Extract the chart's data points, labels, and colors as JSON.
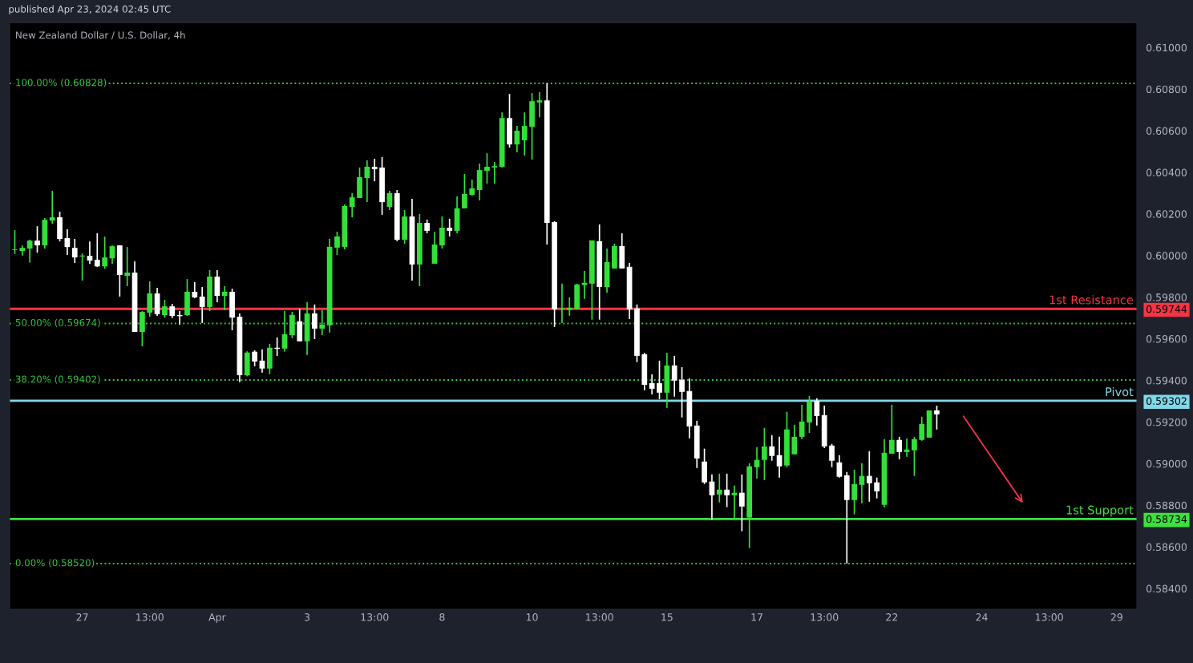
{
  "chart_data": {
    "type": "candlestick",
    "title": "New Zealand Dollar / U.S. Dollar, 4h",
    "annotations": [
      "published Apr 23, 2024 02:45 UTC"
    ],
    "categories": [
      null,
      null,
      null,
      null,
      null,
      null,
      null,
      null,
      null,
      "27",
      null,
      null,
      null,
      null,
      null,
      null,
      null,
      null,
      "13:00",
      null,
      null,
      null,
      null,
      null,
      null,
      null,
      null,
      "Apr",
      null,
      null,
      null,
      null,
      null,
      null,
      null,
      null,
      null,
      null,
      null,
      "3",
      null,
      null,
      null,
      null,
      null,
      null,
      null,
      null,
      "13:00",
      null,
      null,
      null,
      null,
      null,
      null,
      null,
      null,
      "8",
      null,
      null,
      null,
      null,
      null,
      null,
      null,
      null,
      null,
      null,
      null,
      "10",
      null,
      null,
      null,
      null,
      null,
      null,
      null,
      null,
      "13:00",
      null,
      null,
      null,
      null,
      null,
      null,
      null,
      null,
      "15",
      null,
      null,
      null,
      null,
      null,
      null,
      null,
      null,
      null,
      null,
      null,
      "17",
      null,
      null,
      null,
      null,
      null,
      null,
      null,
      null,
      "13:00",
      null,
      null,
      null,
      null,
      null,
      null,
      null,
      null,
      "22",
      null,
      null,
      null,
      null,
      null,
      null,
      null,
      null,
      null,
      null,
      null,
      "24",
      null,
      null,
      null,
      null,
      null,
      null,
      null,
      null,
      "13:00",
      null,
      null,
      null,
      null,
      null,
      null,
      null,
      null,
      "29",
      null,
      null
    ],
    "ohlc": [
      [
        0.60027,
        0.60122,
        0.60008,
        0.6003
      ],
      [
        0.60022,
        0.60049,
        0.6,
        0.60037
      ],
      [
        0.60034,
        0.60076,
        0.59966,
        0.60072
      ],
      [
        0.60072,
        0.60141,
        0.60014,
        0.60049
      ],
      [
        0.60049,
        0.6018,
        0.60034,
        0.60172
      ],
      [
        0.60168,
        0.60311,
        0.60153,
        0.60184
      ],
      [
        0.60184,
        0.60211,
        0.60068,
        0.6008
      ],
      [
        0.60084,
        0.60126,
        0.60003,
        0.60041
      ],
      [
        0.60037,
        0.6008,
        0.59964,
        0.59991
      ],
      [
        0.59996,
        0.6001,
        0.5988,
        0.6
      ],
      [
        0.59999,
        0.60068,
        0.5996,
        0.59976
      ],
      [
        0.5998,
        0.60107,
        0.59945,
        0.59948
      ],
      [
        0.59948,
        0.60091,
        0.59937,
        0.59991
      ],
      [
        0.59987,
        0.60049,
        0.5996,
        0.60045
      ],
      [
        0.60049,
        0.6005,
        0.59803,
        0.59907
      ],
      [
        0.59903,
        0.60041,
        0.59853,
        0.59918
      ],
      [
        0.59918,
        0.59972,
        0.59633,
        0.59633
      ],
      [
        0.59633,
        0.59733,
        0.59564,
        0.59729
      ],
      [
        0.59726,
        0.59876,
        0.59706,
        0.59818
      ],
      [
        0.59818,
        0.59845,
        0.5971,
        0.59718
      ],
      [
        0.59714,
        0.59787,
        0.59702,
        0.59756
      ],
      [
        0.59756,
        0.59768,
        0.59699,
        0.5971
      ],
      [
        0.59714,
        0.59733,
        0.59668,
        0.59709
      ],
      [
        0.59714,
        0.59887,
        0.5971,
        0.59826
      ],
      [
        0.59826,
        0.59872,
        0.59795,
        0.59799
      ],
      [
        0.59803,
        0.59849,
        0.59676,
        0.59753
      ],
      [
        0.59753,
        0.5993,
        0.59733,
        0.59899
      ],
      [
        0.59899,
        0.5993,
        0.59776,
        0.59806
      ],
      [
        0.59806,
        0.59853,
        0.59737,
        0.59826
      ],
      [
        0.59826,
        0.59841,
        0.59641,
        0.59702
      ],
      [
        0.59706,
        0.59722,
        0.59391,
        0.59425
      ],
      [
        0.59425,
        0.5954,
        0.5942,
        0.59534
      ],
      [
        0.59538,
        0.59545,
        0.59468,
        0.59491
      ],
      [
        0.59495,
        0.59549,
        0.59438,
        0.59457
      ],
      [
        0.59457,
        0.59576,
        0.5943,
        0.59557
      ],
      [
        0.59557,
        0.59607,
        0.59518,
        0.59552
      ],
      [
        0.59553,
        0.59734,
        0.59538,
        0.59622
      ],
      [
        0.59618,
        0.5973,
        0.59603,
        0.59715
      ],
      [
        0.59684,
        0.59745,
        0.59588,
        0.59588
      ],
      [
        0.59588,
        0.59776,
        0.59522,
        0.59722
      ],
      [
        0.59722,
        0.59765,
        0.59599,
        0.59649
      ],
      [
        0.59649,
        0.59738,
        0.59618,
        0.59668
      ],
      [
        0.59665,
        0.6008,
        0.5963,
        0.60042
      ],
      [
        0.60038,
        0.60115,
        0.60003,
        0.60092
      ],
      [
        0.60042,
        0.60246,
        0.6003,
        0.60238
      ],
      [
        0.60234,
        0.603,
        0.60184,
        0.6028
      ],
      [
        0.60277,
        0.60423,
        0.60277,
        0.60377
      ],
      [
        0.60373,
        0.60458,
        0.60257,
        0.60427
      ],
      [
        0.60427,
        0.60465,
        0.60357,
        0.60415
      ],
      [
        0.60423,
        0.60473,
        0.60196,
        0.60257
      ],
      [
        0.60234,
        0.60311,
        0.60219,
        0.603
      ],
      [
        0.603,
        0.60315,
        0.60069,
        0.60076
      ],
      [
        0.60076,
        0.60219,
        0.60057,
        0.60188
      ],
      [
        0.60188,
        0.60273,
        0.5988,
        0.59957
      ],
      [
        0.59957,
        0.602,
        0.59853,
        0.60157
      ],
      [
        0.60157,
        0.60173,
        0.60107,
        0.60119
      ],
      [
        0.59961,
        0.60115,
        0.59961,
        0.60053
      ],
      [
        0.60049,
        0.60188,
        0.60034,
        0.60134
      ],
      [
        0.60134,
        0.60177,
        0.60092,
        0.60119
      ],
      [
        0.60119,
        0.60284,
        0.60107,
        0.60227
      ],
      [
        0.60227,
        0.60392,
        0.60227,
        0.60296
      ],
      [
        0.60292,
        0.60365,
        0.60288,
        0.60323
      ],
      [
        0.60315,
        0.60442,
        0.60265,
        0.60411
      ],
      [
        0.60407,
        0.60492,
        0.60346,
        0.60427
      ],
      [
        0.60423,
        0.6045,
        0.60346,
        0.6043
      ],
      [
        0.60427,
        0.60688,
        0.60423,
        0.60661
      ],
      [
        0.60661,
        0.60777,
        0.60519,
        0.60534
      ],
      [
        0.60534,
        0.60623,
        0.60496,
        0.606
      ],
      [
        0.60554,
        0.60688,
        0.60481,
        0.60623
      ],
      [
        0.60619,
        0.60781,
        0.60461,
        0.60742
      ],
      [
        0.60736,
        0.60785,
        0.60665,
        0.60746
      ],
      [
        0.60746,
        0.60828,
        0.60053,
        0.60157
      ],
      [
        0.60161,
        0.60165,
        0.59657,
        0.59742
      ],
      [
        0.59742,
        0.59865,
        0.59676,
        0.59746
      ],
      [
        0.59739,
        0.59799,
        0.59711,
        0.59749
      ],
      [
        0.59745,
        0.59865,
        0.59742,
        0.59861
      ],
      [
        0.59858,
        0.59926,
        0.59792,
        0.59869
      ],
      [
        0.59865,
        0.60073,
        0.59692,
        0.60073
      ],
      [
        0.60069,
        0.6015,
        0.59692,
        0.59849
      ],
      [
        0.59849,
        0.60034,
        0.59822,
        0.59969
      ],
      [
        0.59938,
        0.60057,
        0.59938,
        0.60046
      ],
      [
        0.60046,
        0.60107,
        0.59938,
        0.59938
      ],
      [
        0.59946,
        0.59965,
        0.59695,
        0.59742
      ],
      [
        0.59746,
        0.59765,
        0.59488,
        0.59518
      ],
      [
        0.59526,
        0.59533,
        0.59352,
        0.59379
      ],
      [
        0.59387,
        0.59429,
        0.59333,
        0.5936
      ],
      [
        0.59387,
        0.59495,
        0.5931,
        0.59341
      ],
      [
        0.59341,
        0.59533,
        0.59268,
        0.59472
      ],
      [
        0.59472,
        0.59518,
        0.59322,
        0.59399
      ],
      [
        0.59403,
        0.59464,
        0.59222,
        0.59345
      ],
      [
        0.59349,
        0.5941,
        0.59122,
        0.59179
      ],
      [
        0.59183,
        0.59206,
        0.58979,
        0.59025
      ],
      [
        0.5901,
        0.59072,
        0.58902,
        0.5891
      ],
      [
        0.58914,
        0.58948,
        0.5873,
        0.58848
      ],
      [
        0.58852,
        0.58952,
        0.58814,
        0.58875
      ],
      [
        0.58875,
        0.58952,
        0.58791,
        0.58848
      ],
      [
        0.58848,
        0.58894,
        0.5873,
        0.5886
      ],
      [
        0.5886,
        0.58948,
        0.58675,
        0.58794
      ],
      [
        0.58741,
        0.59002,
        0.58594,
        0.58987
      ],
      [
        0.58983,
        0.59079,
        0.58929,
        0.59018
      ],
      [
        0.59018,
        0.59172,
        0.58921,
        0.59083
      ],
      [
        0.59083,
        0.59137,
        0.59014,
        0.59037
      ],
      [
        0.59041,
        0.59129,
        0.58933,
        0.58987
      ],
      [
        0.58991,
        0.59249,
        0.58983,
        0.59164
      ],
      [
        0.59045,
        0.59187,
        0.59045,
        0.59129
      ],
      [
        0.59129,
        0.59283,
        0.59118,
        0.59202
      ],
      [
        0.59198,
        0.59325,
        0.59148,
        0.59299
      ],
      [
        0.59302,
        0.59314,
        0.59183,
        0.59229
      ],
      [
        0.59233,
        0.59279,
        0.59075,
        0.59083
      ],
      [
        0.59087,
        0.59095,
        0.58983,
        0.59014
      ],
      [
        0.59006,
        0.59041,
        0.58933,
        0.58937
      ],
      [
        0.58944,
        0.5896,
        0.5852,
        0.58825
      ],
      [
        0.58825,
        0.58971,
        0.58756,
        0.58902
      ],
      [
        0.58898,
        0.59002,
        0.5881,
        0.58941
      ],
      [
        0.58941,
        0.5906,
        0.58817,
        0.58906
      ],
      [
        0.5891,
        0.58933,
        0.58833,
        0.58867
      ],
      [
        0.58802,
        0.59118,
        0.5879,
        0.59052
      ],
      [
        0.59048,
        0.59283,
        0.59048,
        0.59114
      ],
      [
        0.59114,
        0.59129,
        0.59021,
        0.59056
      ],
      [
        0.59056,
        0.59121,
        0.59033,
        0.59068
      ],
      [
        0.59064,
        0.59129,
        0.58941,
        0.59118
      ],
      [
        0.59114,
        0.59225,
        0.5911,
        0.59191
      ],
      [
        0.59125,
        0.59256,
        0.59125,
        0.59256
      ],
      [
        0.59256,
        0.59279,
        0.59164,
        0.59237
      ],
      null,
      null,
      null,
      null,
      null,
      null,
      null,
      null,
      null,
      null,
      null,
      null,
      null,
      null,
      null,
      null,
      null,
      null,
      null,
      null,
      null,
      null,
      null,
      null,
      null,
      null
    ],
    "colors": [
      "#33e03a",
      "#33e03a",
      "#33e03a",
      "#ffffff",
      "#33e03a",
      "#33e03a",
      "#ffffff",
      "#ffffff",
      "#ffffff",
      "#33e03a",
      "#ffffff",
      "#ffffff",
      "#33e03a",
      "#33e03a",
      "#ffffff",
      "#33e03a",
      "#ffffff",
      "#33e03a",
      "#33e03a",
      "#ffffff",
      "#33e03a",
      "#ffffff",
      "#ffffff",
      "#33e03a",
      "#ffffff",
      "#ffffff",
      "#33e03a",
      "#ffffff",
      "#33e03a",
      "#ffffff",
      "#ffffff",
      "#33e03a",
      "#ffffff",
      "#ffffff",
      "#33e03a",
      "#ffffff",
      "#33e03a",
      "#33e03a",
      "#ffffff",
      "#33e03a",
      "#ffffff",
      "#33e03a",
      "#33e03a",
      "#33e03a",
      "#33e03a",
      "#33e03a",
      "#33e03a",
      "#33e03a",
      "#ffffff",
      "#ffffff",
      "#33e03a",
      "#ffffff",
      "#33e03a",
      "#ffffff",
      "#33e03a",
      "#ffffff",
      "#33e03a",
      "#33e03a",
      "#ffffff",
      "#33e03a",
      "#33e03a",
      "#33e03a",
      "#33e03a",
      "#33e03a",
      "#33e03a",
      "#33e03a",
      "#ffffff",
      "#33e03a",
      "#33e03a",
      "#33e03a",
      "#33e03a",
      "#ffffff",
      "#ffffff",
      "#33e03a",
      "#33e03a",
      "#33e03a",
      "#33e03a",
      "#33e03a",
      "#ffffff",
      "#33e03a",
      "#33e03a",
      "#ffffff",
      "#ffffff",
      "#ffffff",
      "#ffffff",
      "#ffffff",
      "#ffffff",
      "#33e03a",
      "#ffffff",
      "#ffffff",
      "#ffffff",
      "#ffffff",
      "#ffffff",
      "#ffffff",
      "#33e03a",
      "#ffffff",
      "#33e03a",
      "#ffffff",
      "#33e03a",
      "#33e03a",
      "#33e03a",
      "#ffffff",
      "#ffffff",
      "#33e03a",
      "#33e03a",
      "#33e03a",
      "#33e03a",
      "#ffffff",
      "#ffffff",
      "#ffffff",
      "#ffffff",
      "#ffffff",
      "#33e03a",
      "#33e03a",
      "#ffffff",
      "#ffffff",
      "#33e03a",
      "#33e03a",
      "#ffffff",
      "#33e03a",
      "#33e03a",
      "#33e03a",
      "#33e03a",
      "#ffffff",
      null,
      null,
      null,
      null,
      null,
      null,
      null,
      null,
      null,
      null,
      null,
      null,
      null,
      null,
      null,
      null,
      null,
      null,
      null,
      null,
      null,
      null,
      null,
      null,
      null,
      null
    ],
    "ylim": [
      0.583,
      0.6112
    ],
    "yticks": [
      {
        "value": 0.584,
        "label": "0.58400"
      },
      {
        "value": 0.586,
        "label": "0.58600"
      },
      {
        "value": 0.588,
        "label": "0.58800"
      },
      {
        "value": 0.58734,
        "label": "0.58734"
      },
      {
        "value": 0.59302,
        "label": "0.59302"
      },
      {
        "value": 0.59744,
        "label": "0.59744"
      },
      {
        "value": 0.59,
        "label": "0.59000"
      },
      {
        "value": 0.592,
        "label": "0.59200"
      },
      {
        "value": 0.594,
        "label": "0.59400"
      },
      {
        "value": 0.596,
        "label": "0.59600"
      },
      {
        "value": 0.598,
        "label": "0.59800"
      },
      {
        "value": 0.6,
        "label": "0.60000"
      },
      {
        "value": 0.602,
        "label": "0.60200"
      },
      {
        "value": 0.604,
        "label": "0.60400"
      },
      {
        "value": 0.606,
        "label": "0.60600"
      },
      {
        "value": 0.608,
        "label": "0.60800"
      },
      {
        "value": 0.61,
        "label": "0.61000"
      }
    ],
    "ref_lines": [
      {
        "axis": "y",
        "value": 0.60828,
        "label": "100.00% (0.60828)",
        "color": "#33c43a",
        "line_style": "dotted"
      },
      {
        "axis": "y",
        "value": 0.59674,
        "label": "50.00% (0.59674)",
        "color": "#33c43a",
        "line_style": "dotted"
      },
      {
        "axis": "y",
        "value": 0.59402,
        "label": "38.20% (0.59402)",
        "color": "#33c43a",
        "line_style": "dotted"
      },
      {
        "axis": "y",
        "value": 0.5852,
        "label": "0.00% (0.58520)",
        "color": "#33c43a",
        "line_style": "dotted"
      },
      {
        "axis": "y",
        "value": 0.59744,
        "label": "1st Resistance",
        "color": "#f23645",
        "line_style": "solid"
      },
      {
        "axis": "y",
        "value": 0.59302,
        "label": "Pivot",
        "color": "#80d8e8",
        "line_style": "solid"
      },
      {
        "axis": "y",
        "value": 0.58734,
        "label": "1st Support",
        "color": "#3ee03e",
        "line_style": "solid"
      }
    ],
    "grid": false,
    "legend": false
  }
}
